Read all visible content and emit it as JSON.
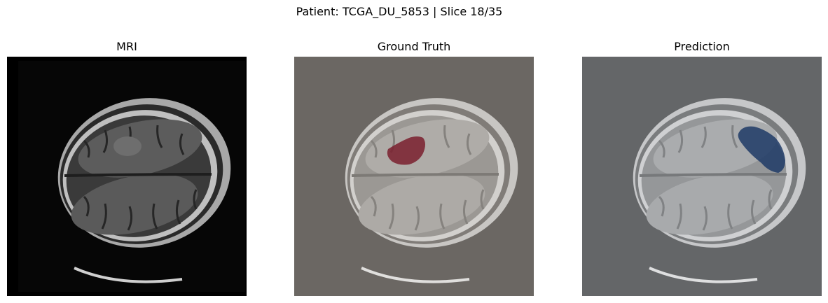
{
  "figure": {
    "suptitle": "Patient: TCGA_DU_5853 | Slice 18/35"
  },
  "panels": [
    {
      "title": "MRI",
      "background": "#000000",
      "brain_fill": "#3a3a3a",
      "tint": null
    },
    {
      "title": "Ground Truth",
      "background": "#6b6763",
      "brain_fill": "#9b9894",
      "tint": "#7a1f2e"
    },
    {
      "title": "Prediction",
      "background": "#646668",
      "brain_fill": "#959799",
      "tint": "#1e3a66"
    }
  ]
}
